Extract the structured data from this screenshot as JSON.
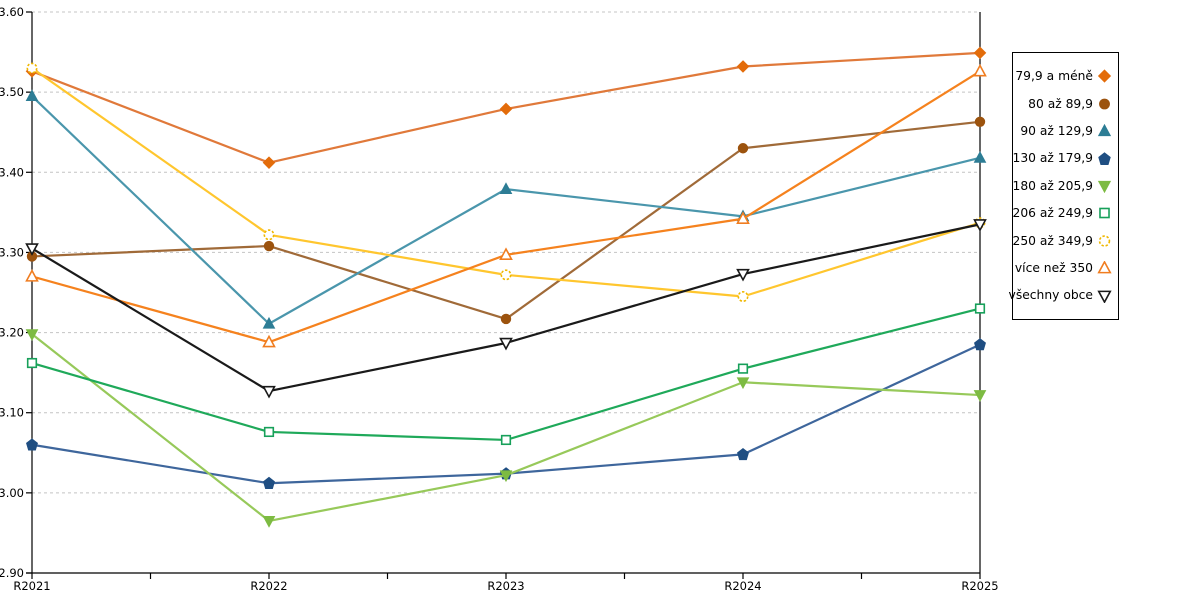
{
  "chart_data": {
    "type": "line",
    "title": "",
    "xlabel": "",
    "ylabel": "",
    "categories": [
      "R2021",
      "R2022",
      "R2023",
      "R2024",
      "R2025"
    ],
    "y_ticks": [
      "3.60",
      "3.50",
      "3.40",
      "3.30",
      "3.20",
      "3.10",
      "3.00",
      "2.90"
    ],
    "ylim": [
      2.9,
      3.6
    ],
    "ytick_step": 0.1,
    "grid": "horizontal-dashed",
    "grid_color": "#C4C4C4",
    "axis_color": "#000000",
    "legend_position": "right",
    "series": [
      {
        "name": "79,9 a méně",
        "marker": "diamond",
        "filled": true,
        "dashed_outline": false,
        "color": "#E36C0A",
        "line_color": "#E0793A",
        "values": [
          3.526,
          3.412,
          3.479,
          3.532,
          3.549
        ]
      },
      {
        "name": "80 až 89,9",
        "marker": "circle",
        "filled": true,
        "dashed_outline": false,
        "color": "#9C530E",
        "line_color": "#A06A38",
        "values": [
          3.295,
          3.308,
          3.217,
          3.43,
          3.463
        ]
      },
      {
        "name": "90 až 129,9",
        "marker": "triangle-up",
        "filled": true,
        "dashed_outline": false,
        "color": "#2D7D95",
        "line_color": "#4A96AC",
        "values": [
          3.495,
          3.211,
          3.379,
          3.345,
          3.418
        ]
      },
      {
        "name": "130 až 179,9",
        "marker": "pentagon",
        "filled": true,
        "dashed_outline": false,
        "color": "#1F4E82",
        "line_color": "#3E669C",
        "values": [
          3.06,
          3.012,
          3.024,
          3.048,
          3.185
        ]
      },
      {
        "name": "180 až 205,9",
        "marker": "triangle-down",
        "filled": true,
        "dashed_outline": false,
        "color": "#7DBB42",
        "line_color": "#97C95A",
        "values": [
          3.198,
          2.965,
          3.022,
          3.138,
          3.122
        ]
      },
      {
        "name": "206 až 249,9",
        "marker": "square",
        "filled": false,
        "dashed_outline": false,
        "color": "#17A05A",
        "line_color": "#1FA95A",
        "values": [
          3.162,
          3.076,
          3.066,
          3.155,
          3.23
        ]
      },
      {
        "name": "250 až 349,9",
        "marker": "circle",
        "filled": false,
        "dashed_outline": true,
        "color": "#EFB700",
        "line_color": "#FFC62E",
        "values": [
          3.53,
          3.322,
          3.272,
          3.245,
          3.337
        ]
      },
      {
        "name": "více než 350",
        "marker": "triangle-up",
        "filled": false,
        "dashed_outline": false,
        "color": "#F07D20",
        "line_color": "#F5821E",
        "values": [
          3.27,
          3.188,
          3.297,
          3.342,
          3.526
        ]
      },
      {
        "name": "všechny obce",
        "marker": "triangle-down",
        "filled": false,
        "dashed_outline": false,
        "color": "#1A1A1A",
        "line_color": "#1A1A1A",
        "values": [
          3.305,
          3.127,
          3.187,
          3.273,
          3.335
        ]
      }
    ]
  }
}
